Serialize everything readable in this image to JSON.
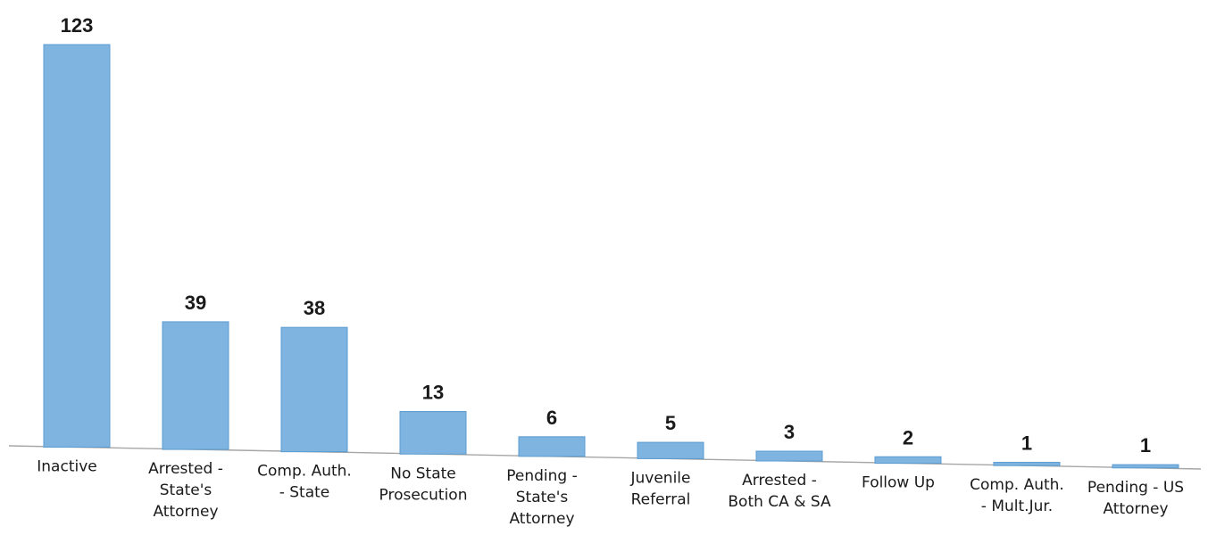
{
  "chart_data": {
    "type": "bar",
    "title": "",
    "xlabel": "",
    "ylabel": "",
    "categories": [
      [
        "Inactive"
      ],
      [
        "Arrested -",
        "State's",
        "Attorney"
      ],
      [
        "Comp. Auth.",
        "- State"
      ],
      [
        "No State",
        "Prosecution"
      ],
      [
        "Pending -",
        "State's",
        "Attorney"
      ],
      [
        "Juvenile",
        "Referral"
      ],
      [
        "Arrested -",
        "Both CA & SA"
      ],
      [
        "Follow Up"
      ],
      [
        "Comp. Auth.",
        "- Mult.Jur."
      ],
      [
        "Pending - US",
        "Attorney"
      ]
    ],
    "values": [
      123,
      39,
      38,
      13,
      6,
      5,
      3,
      2,
      1,
      1
    ],
    "ylim": [
      0,
      123
    ],
    "grid": false,
    "data_labels": true,
    "colors": {
      "bar_fill": "#7fb4e0",
      "bar_stroke": "#5b9bd0",
      "axis": "#a6a6a6"
    }
  }
}
